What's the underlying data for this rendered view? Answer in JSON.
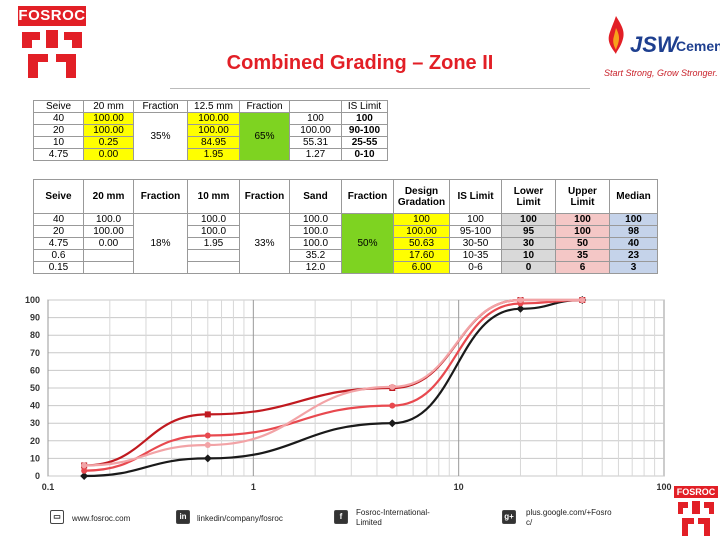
{
  "header": {
    "fosroc_logo_text": "FOSROC",
    "title": "Combined Grading – Zone II",
    "jsw_logo_text": "JSW",
    "jsw_cement_text": "Cement",
    "jsw_tagline": "Start Strong, Grow Stronger."
  },
  "table1": {
    "headers": [
      "Seive",
      "20 mm",
      "Fraction",
      "12.5 mm",
      "Fraction",
      "",
      "IS Limit"
    ],
    "rows": [
      [
        "40",
        "100.00",
        "",
        "100.00",
        "",
        "100",
        "100"
      ],
      [
        "20",
        "100.00",
        "",
        "100.00",
        "",
        "100.00",
        "90-100"
      ],
      [
        "10",
        "0.25",
        "",
        "84.95",
        "",
        "55.31",
        "25-55"
      ],
      [
        "4.75",
        "0.00",
        "",
        "1.95",
        "",
        "1.27",
        "0-10"
      ]
    ],
    "fraction1": "35%",
    "fraction2": "65%"
  },
  "table2": {
    "headers": [
      "Seive",
      "20 mm",
      "Fraction",
      "10 mm",
      "Fraction",
      "Sand",
      "Fraction",
      "Design Gradation",
      "IS Limit",
      "Lower Limit",
      "Upper Limit",
      "Median"
    ],
    "rows": [
      [
        "40",
        "100.0",
        "",
        "100.0",
        "",
        "100.0",
        "",
        "100",
        "100",
        "100",
        "100",
        "100"
      ],
      [
        "20",
        "100.00",
        "",
        "100.0",
        "",
        "100.0",
        "",
        "100.00",
        "95-100",
        "95",
        "100",
        "98"
      ],
      [
        "4.75",
        "0.00",
        "18%",
        "1.95",
        "33%",
        "100.0",
        "50%",
        "50.63",
        "30-50",
        "30",
        "50",
        "40"
      ],
      [
        "0.6",
        "",
        "",
        "",
        "",
        "35.2",
        "",
        "17.60",
        "10-35",
        "10",
        "35",
        "23"
      ],
      [
        "0.15",
        "",
        "",
        "",
        "",
        "12.0",
        "",
        "6.00",
        "0-6",
        "0",
        "6",
        "3"
      ]
    ]
  },
  "chart_data": {
    "type": "line",
    "x_scale": "log",
    "xlim": [
      0.1,
      100
    ],
    "ylim": [
      0,
      100
    ],
    "x_ticks": [
      "0.1",
      "1",
      "10",
      "100"
    ],
    "y_ticks": [
      "0",
      "10",
      "20",
      "30",
      "40",
      "50",
      "60",
      "70",
      "80",
      "90",
      "100"
    ],
    "grid": true,
    "series": [
      {
        "color": "#1a1a1a",
        "marker": "diamond",
        "points": [
          [
            0.15,
            0
          ],
          [
            0.6,
            10
          ],
          [
            4.75,
            30
          ],
          [
            20,
            95
          ],
          [
            40,
            100
          ]
        ]
      },
      {
        "color": "#c0191f",
        "marker": "square",
        "points": [
          [
            0.15,
            6
          ],
          [
            0.6,
            35
          ],
          [
            4.75,
            50
          ],
          [
            20,
            100
          ],
          [
            40,
            100
          ]
        ]
      },
      {
        "color": "#e8494f",
        "marker": "circle",
        "points": [
          [
            0.15,
            3
          ],
          [
            0.6,
            23
          ],
          [
            4.75,
            40
          ],
          [
            20,
            98
          ],
          [
            40,
            100
          ]
        ]
      },
      {
        "color": "#f2a3a6",
        "marker": "circle",
        "points": [
          [
            0.15,
            6
          ],
          [
            0.6,
            17.6
          ],
          [
            4.75,
            50.63
          ],
          [
            20,
            100
          ],
          [
            40,
            100
          ]
        ]
      }
    ]
  },
  "footer": {
    "website": "www.fosroc.com",
    "linkedin": "linkedin/company/fosroc",
    "facebook_line1": "Fosroc-International-",
    "facebook_line2": "Limited",
    "gplus_line1": "plus.google.com/+Fosro",
    "gplus_line2": "c/",
    "fosroc_small_text": "FOSROC"
  }
}
